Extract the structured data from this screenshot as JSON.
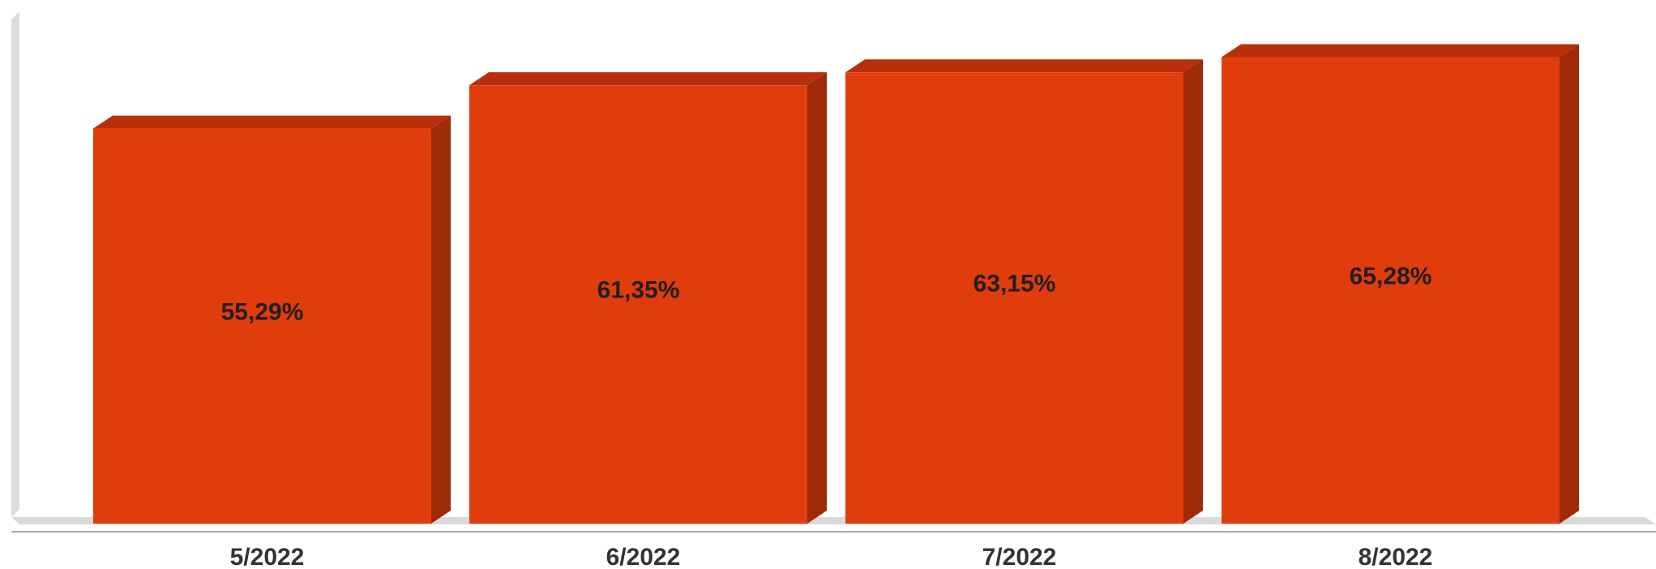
{
  "chart_data": {
    "type": "bar",
    "categories": [
      "5/2022",
      "6/2022",
      "7/2022",
      "8/2022"
    ],
    "values": [
      55.29,
      61.35,
      63.15,
      65.28
    ],
    "data_labels": [
      "55,29%",
      "61,35%",
      "63,15%",
      "65,28%"
    ],
    "title": "",
    "xlabel": "",
    "ylabel": "",
    "ylim": [
      0,
      66.7
    ],
    "grid": false,
    "legend": "none",
    "style": "3d"
  },
  "colors": {
    "bar_front": "#e03c0c",
    "bar_top": "#b8300a",
    "bar_side": "#9e2a08",
    "wall": "#dcdcdc",
    "floor": "#d9d9d9",
    "axis_line": "#aaaaaa"
  }
}
